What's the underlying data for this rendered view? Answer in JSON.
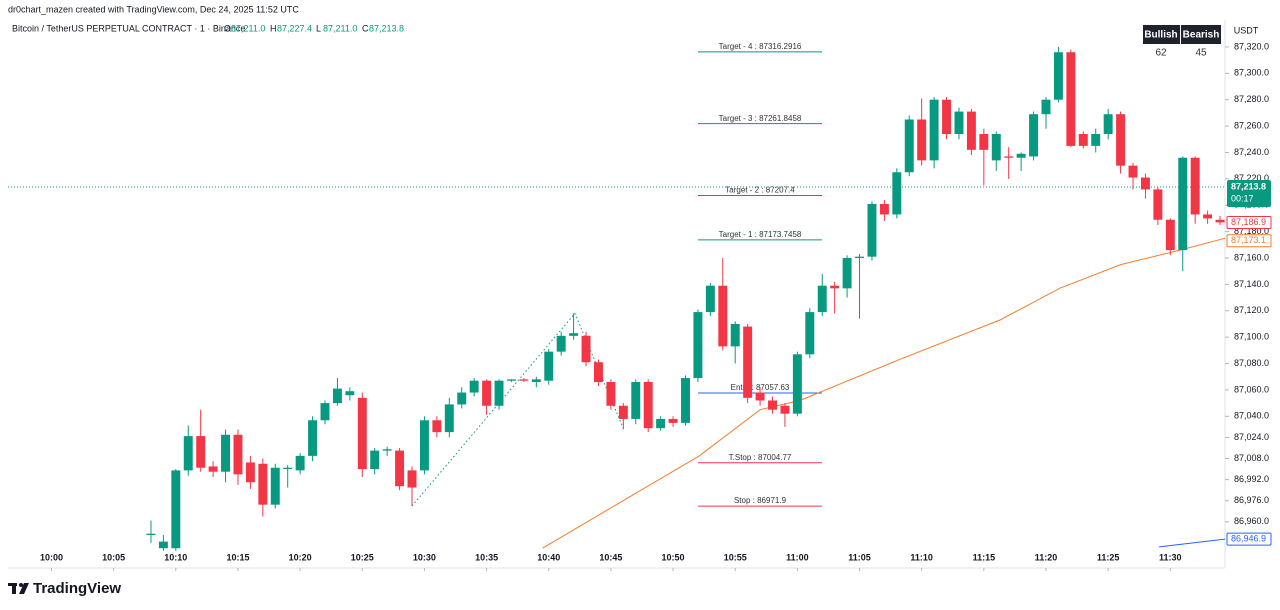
{
  "header": {
    "creator": "dr0chart_mazen created with TradingView.com, Dec 24, 2025 11:52 UTC",
    "symbol": "Bitcoin / TetherUS PERPETUAL CONTRACT · 1 · Binance",
    "ohlc": [
      {
        "key": "O",
        "value": "87,211.0"
      },
      {
        "key": "H",
        "value": "87,227.4"
      },
      {
        "key": "L",
        "value": "87,211.0"
      },
      {
        "key": "C",
        "value": "87,213.8"
      }
    ]
  },
  "sentiment": {
    "bullish_label": "Bullish",
    "bearish_label": "Bearish",
    "bullish": 62,
    "bearish": 45
  },
  "footer": {
    "brand": "TradingView"
  },
  "chart_data": {
    "type": "candlestick",
    "currency": "USDT",
    "up_color": "#089981",
    "down_color": "#f23645",
    "xlim": [
      596.5,
      694.4
    ],
    "ylim": [
      86925,
      87348
    ],
    "xticks": [
      {
        "value": 600,
        "label": "10:00"
      },
      {
        "value": 605,
        "label": "10:05"
      },
      {
        "value": 610,
        "label": "10:10"
      },
      {
        "value": 615,
        "label": "10:15"
      },
      {
        "value": 620,
        "label": "10:20"
      },
      {
        "value": 625,
        "label": "10:25"
      },
      {
        "value": 630,
        "label": "10:30"
      },
      {
        "value": 635,
        "label": "10:35"
      },
      {
        "value": 640,
        "label": "10:40"
      },
      {
        "value": 645,
        "label": "10:45"
      },
      {
        "value": 650,
        "label": "10:50"
      },
      {
        "value": 655,
        "label": "10:55"
      },
      {
        "value": 660,
        "label": "11:00"
      },
      {
        "value": 665,
        "label": "11:05"
      },
      {
        "value": 670,
        "label": "11:10"
      },
      {
        "value": 675,
        "label": "11:15"
      },
      {
        "value": 680,
        "label": "11:20"
      },
      {
        "value": 685,
        "label": "11:25"
      },
      {
        "value": 690,
        "label": "11:30"
      }
    ],
    "yticks": [
      {
        "value": 87320,
        "label": "87,320.0"
      },
      {
        "value": 87300,
        "label": "87,300.0"
      },
      {
        "value": 87280,
        "label": "87,280.0"
      },
      {
        "value": 87260,
        "label": "87,260.0"
      },
      {
        "value": 87240,
        "label": "87,240.0"
      },
      {
        "value": 87220,
        "label": "87,220.0"
      },
      {
        "value": 87200,
        "label": "87,200.0"
      },
      {
        "value": 87180,
        "label": "87,180.0"
      },
      {
        "value": 87160,
        "label": "87,160.0"
      },
      {
        "value": 87140,
        "label": "87,140.0"
      },
      {
        "value": 87120,
        "label": "87,120.0"
      },
      {
        "value": 87100,
        "label": "87,100.0"
      },
      {
        "value": 87080,
        "label": "87,080.0"
      },
      {
        "value": 87060,
        "label": "87,060.0"
      },
      {
        "value": 87040,
        "label": "87,040.0"
      },
      {
        "value": 87024,
        "label": "87,024.0"
      },
      {
        "value": 87008,
        "label": "87,008.0"
      },
      {
        "value": 86992,
        "label": "86,992.0"
      },
      {
        "value": 86976,
        "label": "86,976.0"
      },
      {
        "value": 86960,
        "label": "86,960.0"
      }
    ],
    "x": [
      608,
      609,
      610,
      611,
      612,
      613,
      614,
      615,
      616,
      617,
      618,
      619,
      620,
      621,
      622,
      623,
      624,
      625,
      626,
      627,
      628,
      629,
      630,
      631,
      632,
      633,
      634,
      635,
      636,
      637,
      638,
      639,
      640,
      641,
      642,
      643,
      644,
      645,
      646,
      647,
      648,
      649,
      650,
      651,
      652,
      653,
      654,
      655,
      656,
      657,
      658,
      659,
      660,
      661,
      662,
      663,
      664,
      665,
      666,
      667,
      668,
      669,
      670,
      671,
      672,
      673,
      674,
      675,
      676,
      677,
      678,
      679,
      680,
      681,
      682,
      683,
      684,
      685,
      686,
      687,
      688,
      689,
      690,
      691,
      692,
      693,
      694
    ],
    "open": [
      86950,
      86940,
      86940,
      86999,
      87025,
      87002,
      86998,
      87026,
      87005,
      87004,
      86973,
      87000,
      86999,
      87010,
      87037,
      87050,
      87056,
      87054,
      87000,
      87014,
      87014,
      86999,
      86999,
      87037,
      87028,
      87049,
      87058,
      87067,
      87048,
      87067,
      87068,
      87066,
      87067,
      87089,
      87101,
      87101,
      87081,
      87066,
      87048,
      87038,
      87066,
      87031,
      87038,
      87035,
      87069,
      87119,
      87139,
      87093,
      87108,
      87058,
      87052,
      87048,
      87042,
      87087,
      87119,
      87139,
      87137,
      87160,
      87161,
      87201,
      87193,
      87225,
      87265,
      87234,
      87280,
      87254,
      87271,
      87254,
      87234,
      87237,
      87236,
      87237,
      87269,
      87280,
      87316,
      87254,
      87245,
      87254,
      87269,
      87230,
      87221,
      87212,
      87189,
      87166,
      87236,
      87193,
      87189
    ],
    "high": [
      86961,
      86950,
      87000,
      87033,
      87045,
      87006,
      87030,
      87030,
      87010,
      87008,
      87004,
      87003,
      87012,
      87040,
      87052,
      87069,
      87062,
      87058,
      87016,
      87017,
      87016,
      87002,
      87040,
      87040,
      87054,
      87062,
      87069,
      87068,
      87068,
      87068,
      87069,
      87070,
      87091,
      87104,
      87118,
      87104,
      87083,
      87068,
      87050,
      87068,
      87068,
      87040,
      87040,
      87071,
      87121,
      87141,
      87160,
      87112,
      87110,
      87062,
      87055,
      87050,
      87089,
      87122,
      87148,
      87142,
      87162,
      87163,
      87203,
      87204,
      87228,
      87268,
      87281,
      87282,
      87282,
      87274,
      87273,
      87258,
      87256,
      87244,
      87240,
      87271,
      87282,
      87320,
      87318,
      87256,
      87258,
      87273,
      87271,
      87232,
      87224,
      87214,
      87190,
      87237,
      87237,
      87196,
      87192
    ],
    "low": [
      86944,
      86938,
      86938,
      86995,
      86998,
      86994,
      86990,
      86988,
      86985,
      86964,
      86970,
      86986,
      86996,
      87006,
      87034,
      87048,
      87052,
      86994,
      86996,
      87010,
      86984,
      86972,
      86996,
      87024,
      87024,
      87046,
      87055,
      87041,
      87045,
      87066,
      87066,
      87062,
      87064,
      87086,
      87098,
      87078,
      87063,
      87045,
      87030,
      87034,
      87028,
      87029,
      87032,
      87033,
      87066,
      87116,
      87090,
      87080,
      87050,
      87048,
      87042,
      87032,
      87040,
      87084,
      87116,
      87118,
      87130,
      87114,
      87158,
      87188,
      87190,
      87222,
      87230,
      87228,
      87250,
      87250,
      87238,
      87215,
      87226,
      87220,
      87226,
      87234,
      87258,
      87278,
      87244,
      87243,
      87240,
      87250,
      87224,
      87212,
      87205,
      87185,
      87162,
      87150,
      87186,
      87186,
      87185
    ],
    "close": [
      86951,
      86945,
      86999,
      87025,
      87001,
      86998,
      87026,
      86996,
      86990,
      86973,
      87001,
      87001,
      87010,
      87037,
      87050,
      87061,
      87059,
      87000,
      87014,
      87015,
      86987,
      86986,
      87037,
      87028,
      87049,
      87058,
      87067,
      87048,
      87067,
      87068,
      87067,
      87068,
      87089,
      87101,
      87103,
      87081,
      87066,
      87048,
      87038,
      87066,
      87031,
      87038,
      87035,
      87069,
      87119,
      87139,
      87093,
      87110,
      87054,
      87052,
      87045,
      87042,
      87087,
      87119,
      87139,
      87137,
      87160,
      87161,
      87201,
      87193,
      87225,
      87265,
      87234,
      87280,
      87254,
      87271,
      87242,
      87242,
      87254,
      87236,
      87239,
      87269,
      87280,
      87316,
      87245,
      87245,
      87254,
      87269,
      87230,
      87221,
      87212,
      87189,
      87166,
      87236,
      87193,
      87190,
      87187
    ],
    "lines": [
      {
        "color": "#f57c2c",
        "style": "solid",
        "x": [
          639.5,
          652.1,
          657,
          660.2,
          668.2,
          676.3,
          681.1,
          686,
          690.8,
          694.4
        ],
        "values": [
          86940,
          87010,
          87045,
          87052,
          87083,
          87113,
          87137,
          87155,
          87166,
          87175
        ]
      },
      {
        "color": "#089981",
        "style": "dotted",
        "x": [
          629,
          642.1,
          646
        ],
        "values": [
          86972,
          87118,
          87031
        ]
      },
      {
        "color": "#2962ff",
        "style": "solid",
        "x": [
          689.1,
          694.4
        ],
        "values": [
          86941,
          86946.9
        ]
      }
    ],
    "levels": [
      {
        "label": "Target - 4 : 87316.2916",
        "value": 87316.2916,
        "color": "#089981"
      },
      {
        "label": "Target - 3 : 87261.8458",
        "value": 87261.8458,
        "color": "#089981"
      },
      {
        "label": "Target - 2 : 87207.4",
        "value": 87207.4,
        "color": "#089981"
      },
      {
        "label": "Target - 1 : 87173.7458",
        "value": 87173.7458,
        "color": "#089981"
      },
      {
        "label": "Entry : 87057.63",
        "value": 87057.63,
        "color": "#2962ff"
      },
      {
        "label": "T.Stop : 87004.77",
        "value": 87004.77,
        "color": "#f23645"
      },
      {
        "label": "Stop : 86971.9",
        "value": 86971.9,
        "color": "#f23645"
      }
    ],
    "last_price": {
      "value": 87213.8,
      "label": "87,213.8",
      "countdown": "00:17",
      "color": "#089981"
    },
    "axis_tags": [
      {
        "value": 87186.9,
        "label": "87,186.9",
        "color": "#f23645"
      },
      {
        "value": 87173.1,
        "label": "87,173.1",
        "color": "#f57c2c"
      },
      {
        "value": 86946.9,
        "label": "86,946.9",
        "color": "#2962ff"
      }
    ]
  }
}
